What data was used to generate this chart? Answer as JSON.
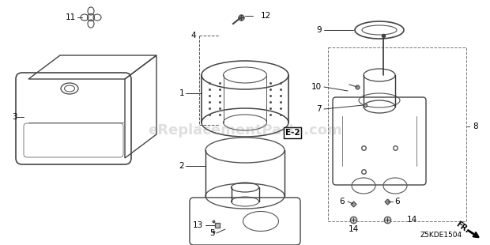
{
  "bg_color": "#ffffff",
  "watermark": "eReplacementParts.com",
  "code": "Z5KDE1504",
  "arrow_label": "FR."
}
